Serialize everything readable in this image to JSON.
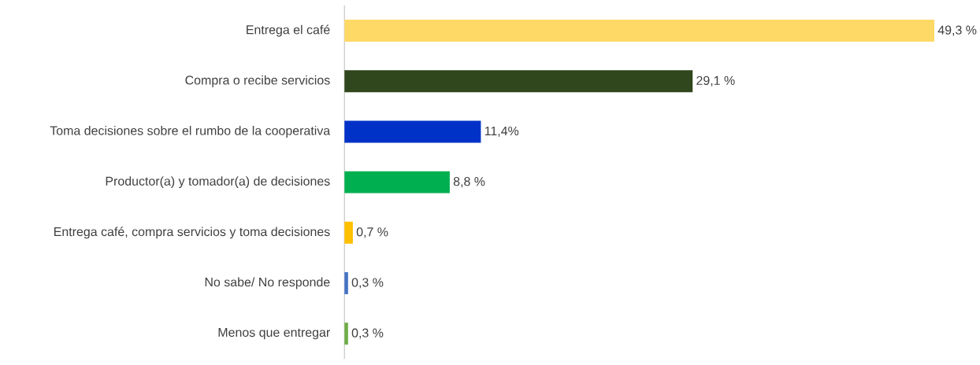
{
  "chart_data": {
    "type": "bar",
    "orientation": "horizontal",
    "categories": [
      "Entrega el café",
      "Compra o recibe servicios",
      "Toma decisiones sobre el rumbo de la cooperativa",
      "Productor(a) y tomador(a) de decisiones",
      "Entrega café, compra servicios y toma decisiones",
      "No sabe/ No responde",
      "Menos que entregar"
    ],
    "values": [
      49.3,
      29.1,
      11.4,
      8.8,
      0.7,
      0.3,
      0.3
    ],
    "colors": [
      "#ffd966",
      "#30461c",
      "#0032c8",
      "#00b050",
      "#ffc000",
      "#4472c4",
      "#70ad47"
    ],
    "value_labels": [
      "49,3 %",
      "29,1 %",
      "11,4%",
      "8,8 %",
      "0,7 %",
      "0,3 %",
      "0,3 %"
    ],
    "tick_labels": "y"
  }
}
